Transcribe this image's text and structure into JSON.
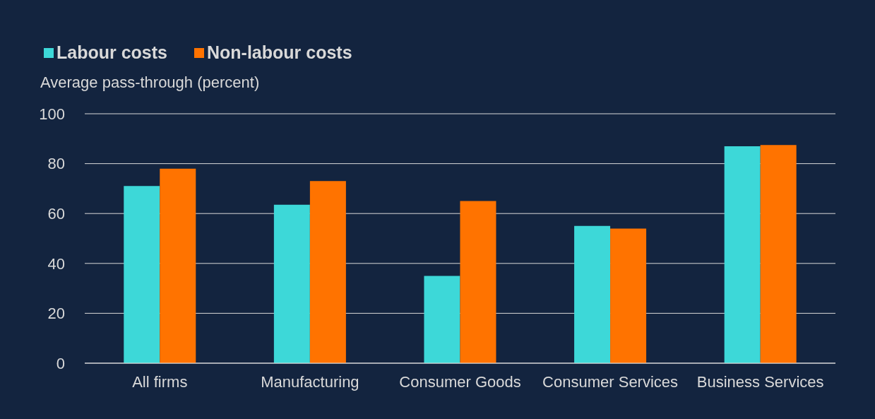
{
  "chart_data": {
    "type": "bar",
    "ylabel": "Average pass-through (percent)",
    "categories": [
      "All firms",
      "Manufacturing",
      "Consumer Goods",
      "Consumer Services",
      "Business Services"
    ],
    "series": [
      {
        "name": "Labour costs",
        "color": "#3dd8d8",
        "values": [
          71,
          63.5,
          35,
          55,
          87
        ]
      },
      {
        "name": "Non-labour costs",
        "color": "#ff7300",
        "values": [
          78,
          73,
          65,
          54,
          87.5
        ]
      }
    ],
    "ylim": [
      0,
      100
    ],
    "yticks": [
      0,
      20,
      40,
      60,
      80,
      100
    ],
    "grid": "y",
    "legend": "top left"
  }
}
